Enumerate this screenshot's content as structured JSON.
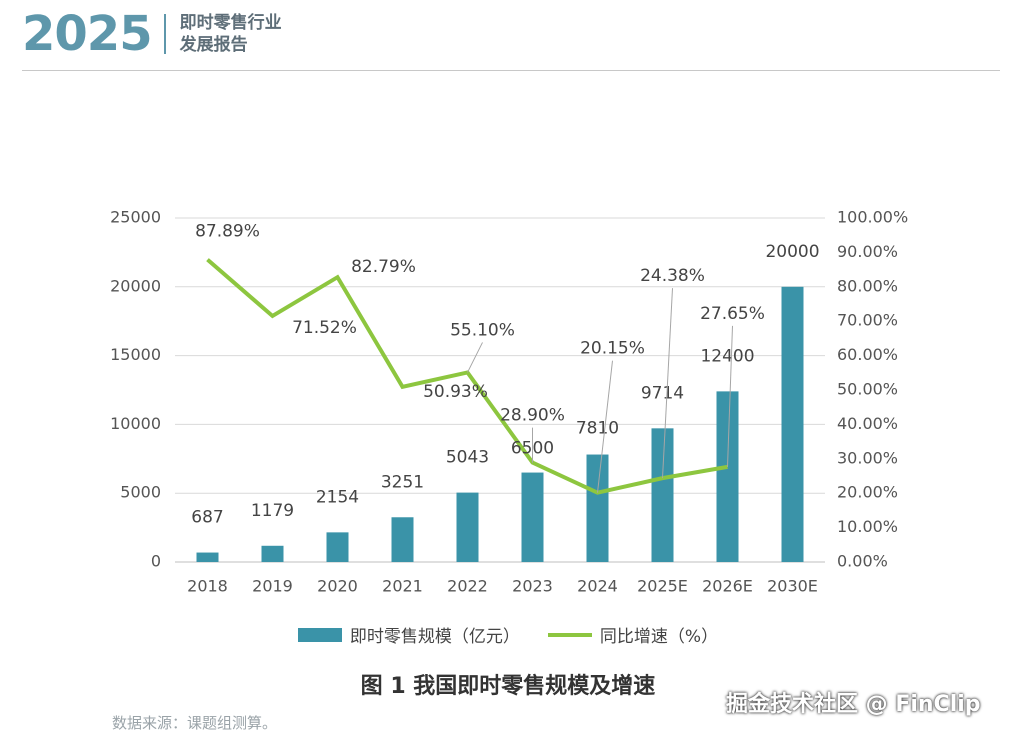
{
  "header": {
    "year": "2025",
    "title_line1": "即时零售行业",
    "title_line2": "发展报告"
  },
  "figure": {
    "caption": "图 1  我国即时零售规模及增速",
    "source": "数据来源：课题组测算。"
  },
  "watermark": "掘金技术社区 @ FinClip",
  "chart_data": {
    "type": "bar",
    "categories": [
      "2018",
      "2019",
      "2020",
      "2021",
      "2022",
      "2023",
      "2024",
      "2025E",
      "2026E",
      "2030E"
    ],
    "series": [
      {
        "name": "即时零售规模（亿元）",
        "kind": "bar",
        "axis": "left",
        "color": "#3a93a8",
        "values": [
          687,
          1179,
          2154,
          3251,
          5043,
          6500,
          7810,
          9714,
          12400,
          20000
        ],
        "labels": [
          "687",
          "1179",
          "2154",
          "3251",
          "5043",
          "6500",
          "7810",
          "9714",
          "12400",
          "20000"
        ]
      },
      {
        "name": "同比增速（%）",
        "kind": "line",
        "axis": "right",
        "color": "#8dc63f",
        "values": [
          87.89,
          71.52,
          82.79,
          50.93,
          55.1,
          28.9,
          20.15,
          24.38,
          27.65,
          null
        ],
        "labels": [
          "87.89%",
          "71.52%",
          "82.79%",
          "50.93%",
          "55.10%",
          "28.90%",
          "20.15%",
          "24.38%",
          "27.65%",
          ""
        ]
      }
    ],
    "left_axis": {
      "ylim": [
        0,
        25000
      ],
      "ticks": [
        "0",
        "5000",
        "10000",
        "15000",
        "20000",
        "25000"
      ]
    },
    "right_axis": {
      "ylim": [
        0,
        100
      ],
      "ticks": [
        "0.00%",
        "10.00%",
        "20.00%",
        "30.00%",
        "40.00%",
        "50.00%",
        "60.00%",
        "70.00%",
        "80.00%",
        "90.00%",
        "100.00%"
      ]
    },
    "grid": "horizontal",
    "legend_position": "bottom",
    "legend": [
      "即时零售规模（亿元）",
      "同比增速（%）"
    ]
  }
}
